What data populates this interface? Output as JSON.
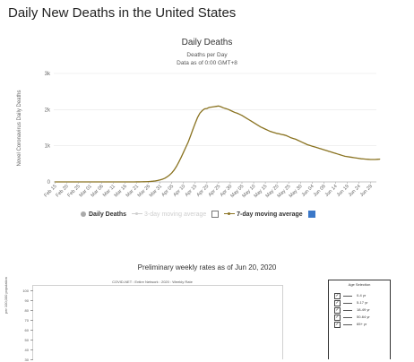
{
  "page": {
    "title": "Daily New Deaths in the United States"
  },
  "chart_data": {
    "type": "bar",
    "title": "Daily Deaths",
    "subtitle": "Deaths per Day",
    "subtitle2": "Data as of 0:00 GMT+8",
    "ylabel": "Novel Coronavirus Daily Deaths",
    "ylim": [
      0,
      3000
    ],
    "yticks": [
      0,
      1000,
      2000,
      3000
    ],
    "ytick_labels": [
      "0",
      "1k",
      "2k",
      "3k"
    ],
    "xtick_labels": [
      "Feb 15",
      "Feb 20",
      "Feb 25",
      "Mar 01",
      "Mar 06",
      "Mar 11",
      "Mar 16",
      "Mar 21",
      "Mar 26",
      "Mar 31",
      "Apr 05",
      "Apr 10",
      "Apr 15",
      "Apr 20",
      "Apr 25",
      "Apr 30",
      "May 05",
      "May 10",
      "May 15",
      "May 20",
      "May 25",
      "May 30",
      "Jun 04",
      "Jun 09",
      "Jun 14",
      "Jun 19",
      "Jun 24",
      "Jun 29"
    ],
    "start_date": "Feb 15",
    "bar_color": "#b0b0b0",
    "avg_color": "#8a7321",
    "series": [
      {
        "name": "Daily Deaths",
        "values": [
          0,
          0,
          0,
          0,
          0,
          0,
          0,
          0,
          0,
          0,
          0,
          0,
          0,
          0,
          0,
          0,
          0,
          0,
          0,
          0,
          0,
          0,
          0,
          0,
          0,
          0,
          0,
          0,
          0,
          0,
          0,
          0,
          0,
          0,
          0,
          0,
          0,
          0,
          0,
          0,
          0,
          0,
          0,
          0,
          0,
          0,
          0,
          0,
          0,
          0,
          0,
          0,
          0,
          0,
          0,
          0,
          0,
          0,
          0,
          0,
          0,
          0,
          0,
          0,
          0,
          0,
          0,
          0,
          0,
          0,
          0,
          0,
          0,
          0,
          0,
          0,
          0,
          0,
          0,
          0,
          0,
          0,
          0,
          0,
          0,
          0,
          0,
          0,
          0,
          0,
          0,
          0,
          0,
          0,
          0,
          0,
          0,
          0,
          0,
          0,
          0,
          0,
          0,
          0,
          0,
          0,
          0,
          0,
          0,
          0,
          0,
          0,
          0,
          0,
          0,
          0,
          0,
          0,
          0,
          0,
          0,
          0,
          0,
          0,
          0,
          0,
          0,
          0,
          0,
          0,
          0,
          0,
          0,
          0,
          0,
          0,
          0,
          0
        ]
      },
      {
        "name": "3-day moving average",
        "values": []
      },
      {
        "name": "7-day moving average",
        "values": [
          0,
          0,
          0,
          0,
          0,
          0,
          0,
          0,
          0,
          0,
          0,
          0,
          0,
          0,
          0,
          0,
          0,
          0,
          0,
          0,
          0,
          0,
          0,
          0,
          0,
          0,
          0,
          0,
          0,
          0,
          0,
          0,
          0,
          0,
          0,
          1,
          2,
          3,
          5,
          7,
          10,
          14,
          20,
          28,
          40,
          55,
          75,
          100,
          140,
          190,
          250,
          330,
          430,
          550,
          680,
          820,
          960,
          1100,
          1270,
          1450,
          1620,
          1780,
          1900,
          1970,
          2020,
          2030,
          2060,
          2070,
          2080,
          2090,
          2100,
          2080,
          2050,
          2030,
          2010,
          1980,
          1950,
          1920,
          1900,
          1870,
          1840,
          1800,
          1760,
          1720,
          1680,
          1640,
          1600,
          1560,
          1520,
          1490,
          1460,
          1430,
          1400,
          1380,
          1360,
          1340,
          1330,
          1310,
          1300,
          1280,
          1250,
          1220,
          1200,
          1180,
          1150,
          1120,
          1090,
          1060,
          1030,
          1010,
          990,
          970,
          950,
          930,
          910,
          890,
          870,
          850,
          830,
          810,
          790,
          770,
          750,
          730,
          710,
          700,
          690,
          680,
          670,
          660,
          650,
          640,
          635,
          630,
          625,
          620,
          620,
          620,
          625,
          630
        ]
      }
    ],
    "legend": {
      "daily_label": "Daily Deaths",
      "avg3_label": "3-day moving average",
      "avg7_label": "7-day moving average",
      "avg3_checked": false,
      "avg7_checked": true,
      "check_color": "#3b78c8"
    }
  },
  "weekly": {
    "title": "Preliminary weekly rates as of Jun 20, 2020",
    "subtitle": "COVID-NET : Entire Network : 2020 : Weekly Rate",
    "yticks": [
      "100",
      "90",
      "80",
      "70",
      "60",
      "50",
      "40",
      "30"
    ],
    "ylabel": "per 100,000 population",
    "age_header": "Age Selection",
    "age_groups": [
      "0-4 yr",
      "5-17 yr",
      "18-49 yr",
      "50-64 yr",
      "65+ yr"
    ]
  }
}
